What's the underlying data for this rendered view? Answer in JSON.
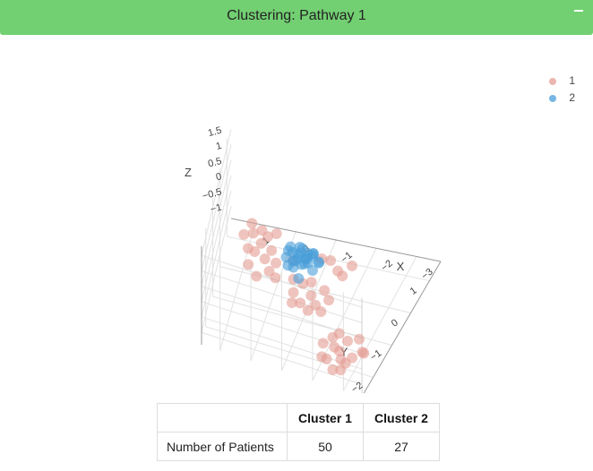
{
  "panel": {
    "title": "Clustering: Pathway 1",
    "minimize_label": "−"
  },
  "chart_data": {
    "type": "scatter3d",
    "axes": {
      "x": {
        "label": "X",
        "ticks": [
          -3,
          -2,
          -1,
          0,
          1
        ],
        "tick_labels": [
          "−3",
          "−2",
          "−1",
          "0",
          "1"
        ],
        "range": [
          -3.6,
          1.6
        ]
      },
      "y": {
        "label": "Y",
        "ticks": [
          -2,
          -1,
          0,
          1
        ],
        "tick_labels": [
          "−2",
          "−1",
          "0",
          "1"
        ],
        "range": [
          -2.6,
          1.6
        ]
      },
      "z": {
        "label": "Z",
        "ticks": [
          -1,
          -0.5,
          0,
          0.5,
          1,
          1.5
        ],
        "tick_labels": [
          "−1",
          "−0.5",
          "0",
          "0.5",
          "1",
          "1.5"
        ],
        "range": [
          -1.4,
          1.8
        ]
      },
      "grid": true
    },
    "legend": {
      "placement": "top-right"
    },
    "series": [
      {
        "name": "1",
        "color": "#e49d93",
        "points": [
          [
            -3.2,
            -1.8,
            -0.95
          ],
          [
            -2.9,
            -1.5,
            -0.9
          ],
          [
            -3.0,
            -2.1,
            -0.85
          ],
          [
            -2.7,
            -2.2,
            -0.9
          ],
          [
            -2.5,
            -1.9,
            -1.0
          ],
          [
            -2.3,
            -2.3,
            -0.9
          ],
          [
            -2.6,
            -1.6,
            -0.95
          ],
          [
            -2.2,
            -1.7,
            -0.85
          ],
          [
            -2.0,
            -1.9,
            -0.9
          ],
          [
            -2.8,
            -2.4,
            -1.0
          ],
          [
            -2.4,
            -2.0,
            -0.8
          ],
          [
            -3.1,
            -1.7,
            -1.05
          ],
          [
            -2.1,
            -2.2,
            -1.0
          ],
          [
            -2.9,
            -2.3,
            -0.85
          ],
          [
            -2.6,
            -2.5,
            -0.95
          ],
          [
            -2.3,
            -1.5,
            -0.9
          ],
          [
            -1.6,
            -0.6,
            -0.95
          ],
          [
            -1.4,
            -0.4,
            -0.9
          ],
          [
            -1.3,
            -0.8,
            -1.0
          ],
          [
            -1.0,
            -0.3,
            -0.85
          ],
          [
            -0.9,
            -0.9,
            -0.95
          ],
          [
            -1.2,
            -1.1,
            -0.9
          ],
          [
            -0.6,
            -0.6,
            -1.0
          ],
          [
            -0.8,
            -0.4,
            -0.85
          ],
          [
            -1.5,
            -0.9,
            -1.05
          ],
          [
            -0.5,
            -0.3,
            -0.9
          ],
          [
            -1.1,
            -0.6,
            -0.95
          ],
          [
            -0.7,
            -1.0,
            -0.9
          ],
          [
            0.2,
            -0.2,
            -0.95
          ],
          [
            0.4,
            0.1,
            -0.9
          ],
          [
            0.5,
            -0.4,
            -1.0
          ],
          [
            0.7,
            0.2,
            -0.85
          ],
          [
            0.3,
            0.4,
            -0.9
          ],
          [
            0.8,
            -0.1,
            -1.0
          ],
          [
            0.1,
            0.1,
            -0.95
          ],
          [
            0.9,
            0.3,
            -0.9
          ],
          [
            0.6,
            0.5,
            -0.85
          ],
          [
            0.0,
            -0.3,
            -1.0
          ],
          [
            -0.3,
            0.3,
            -0.95
          ],
          [
            0.5,
            0.8,
            -0.9
          ],
          [
            0.9,
            0.9,
            -1.0
          ],
          [
            0.7,
            1.0,
            -0.95
          ],
          [
            1.1,
            0.7,
            -0.9
          ],
          [
            0.3,
            0.9,
            -0.85
          ],
          [
            1.0,
            1.2,
            -1.0
          ],
          [
            -1.5,
            0.3,
            -0.95
          ],
          [
            -1.8,
            0.5,
            -0.9
          ],
          [
            -1.2,
            0.6,
            -1.0
          ],
          [
            -1.7,
            0.1,
            -0.85
          ],
          [
            -1.0,
            0.5,
            -0.9
          ]
        ]
      },
      {
        "name": "2",
        "color": "#4a9fd8",
        "points": [
          [
            -1.3,
            -1.6,
            1.15
          ],
          [
            -1.1,
            -1.4,
            1.25
          ],
          [
            -1.0,
            -1.7,
            1.05
          ],
          [
            -1.2,
            -1.3,
            1.0
          ],
          [
            -0.9,
            -1.5,
            1.3
          ],
          [
            -1.4,
            -1.2,
            1.1
          ],
          [
            -1.0,
            -1.2,
            1.2
          ],
          [
            -0.8,
            -1.6,
            0.95
          ],
          [
            -1.2,
            -1.8,
            0.85
          ],
          [
            -1.0,
            -1.0,
            0.95
          ],
          [
            -0.7,
            -1.3,
            1.1
          ],
          [
            -1.5,
            -1.5,
            0.9
          ],
          [
            -1.3,
            -1.0,
            0.8
          ],
          [
            -0.9,
            -1.1,
            0.7
          ],
          [
            -1.1,
            -0.9,
            0.6
          ],
          [
            -0.8,
            -1.0,
            0.5
          ],
          [
            -1.4,
            -0.8,
            0.4
          ],
          [
            -1.2,
            -0.7,
            0.55
          ],
          [
            -0.6,
            -1.2,
            0.75
          ],
          [
            -1.0,
            -0.7,
            0.3
          ],
          [
            -1.6,
            -1.3,
            1.0
          ],
          [
            -0.8,
            -1.4,
            1.35
          ],
          [
            -1.1,
            -1.6,
            1.4
          ],
          [
            -0.9,
            -0.8,
            0.2
          ],
          [
            -0.7,
            -0.9,
            0.35
          ],
          [
            -1.3,
            -1.4,
            1.3
          ],
          [
            -1.2,
            -1.1,
            0.65
          ]
        ]
      }
    ]
  },
  "legend": {
    "items": [
      "1",
      "2"
    ]
  },
  "table": {
    "headers": [
      "",
      "Cluster 1",
      "Cluster 2"
    ],
    "rows": [
      [
        "Number of Patients",
        "50",
        "27"
      ]
    ]
  }
}
